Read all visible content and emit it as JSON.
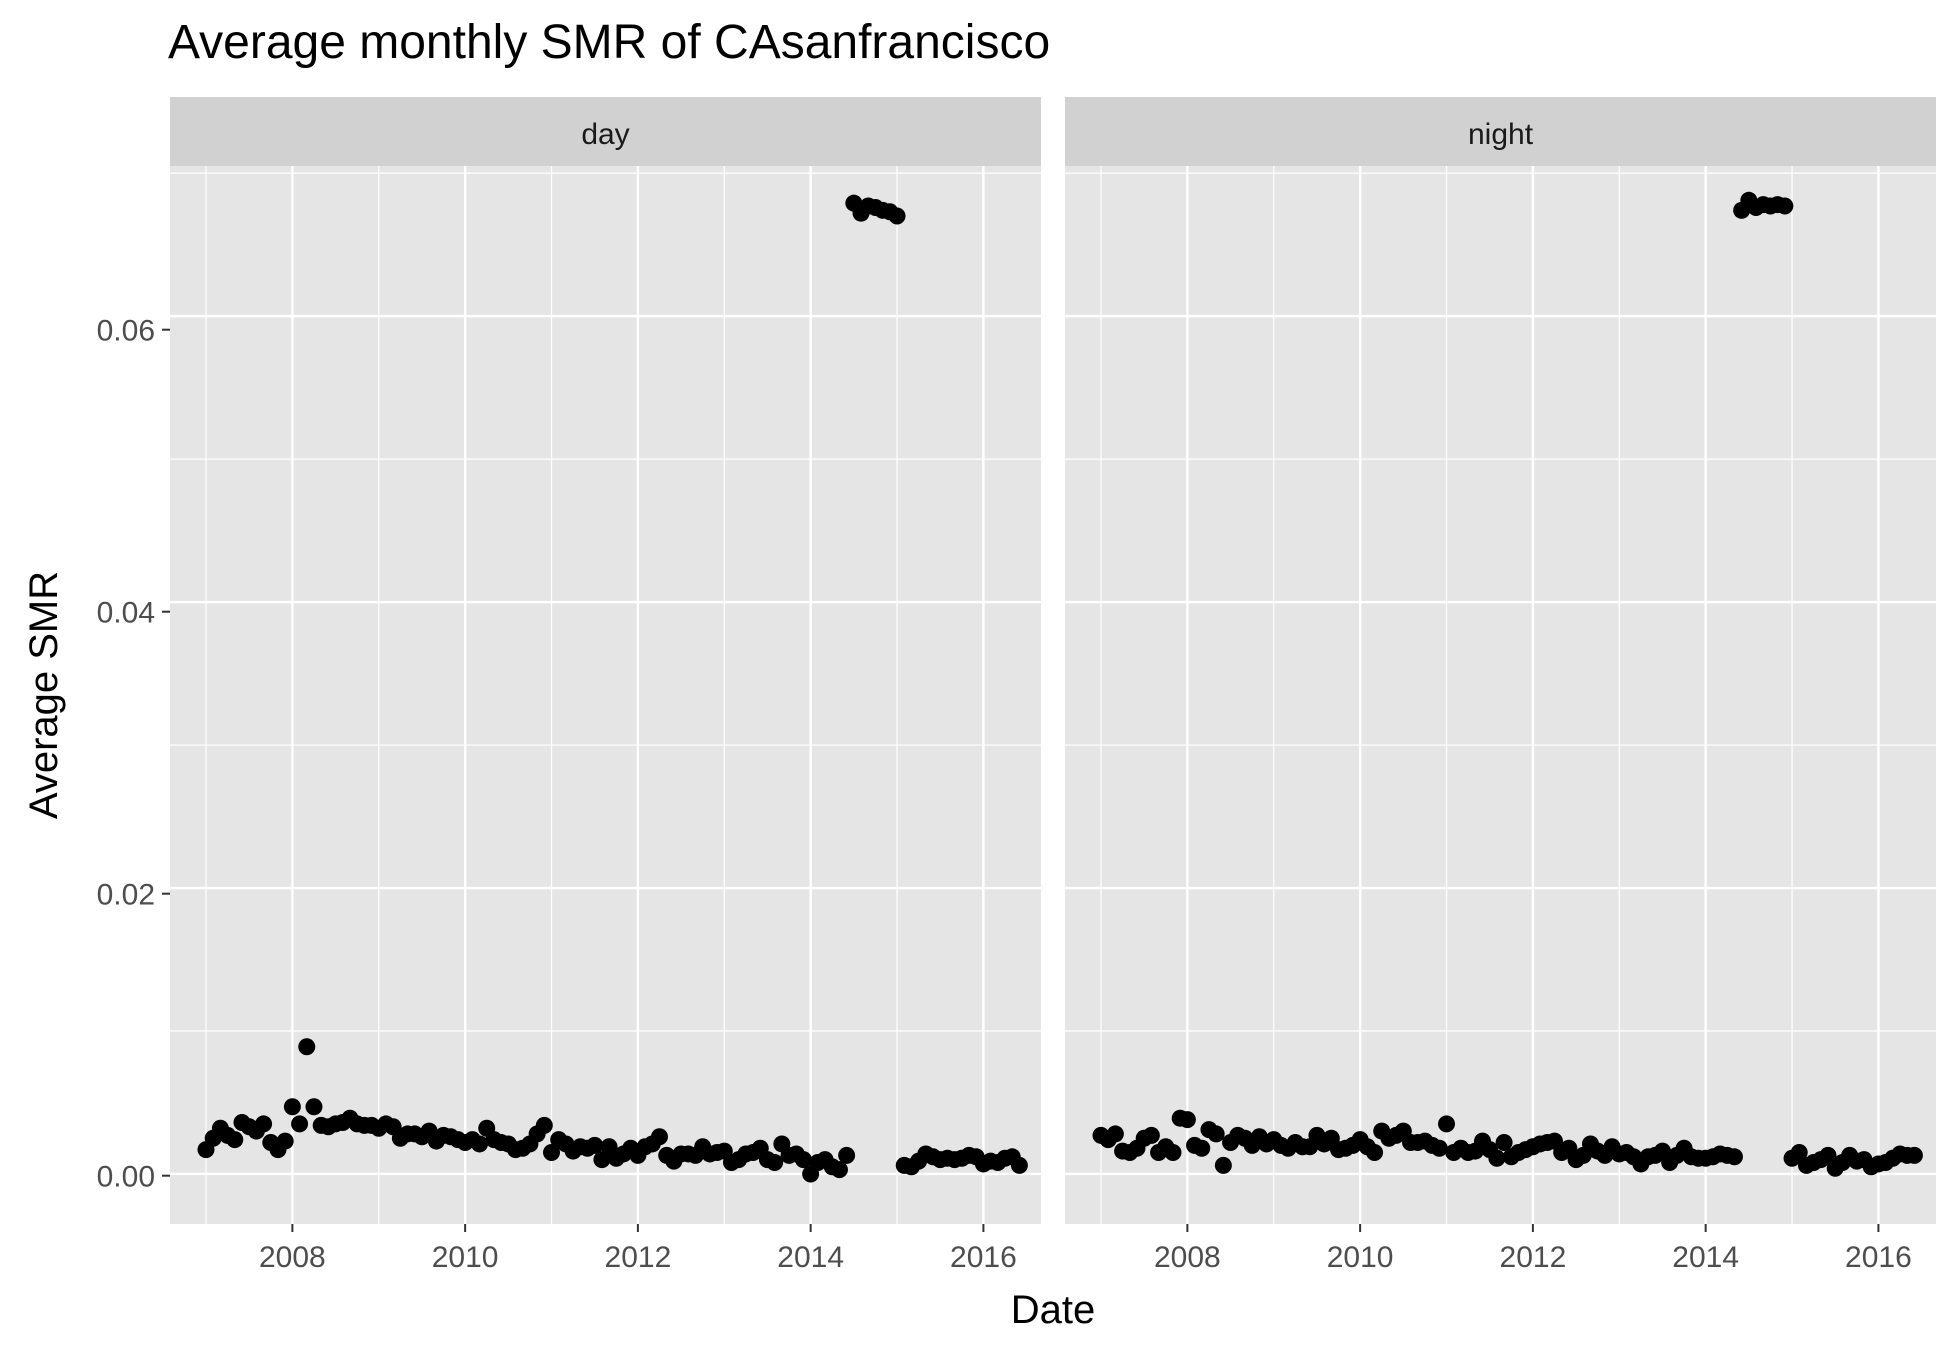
{
  "chart_data": {
    "type": "scatter",
    "title": "Average monthly SMR of CAsanfrancisco",
    "xlabel": "Date",
    "ylabel": "Average SMR",
    "xlim": [
      "2006-08-01",
      "2016-09-01"
    ],
    "ylim": [
      -0.0035,
      0.0705
    ],
    "x_ticks": [
      "2008",
      "2010",
      "2012",
      "2014",
      "2016"
    ],
    "y_ticks": [
      "0.00",
      "0.02",
      "0.04",
      "0.06"
    ],
    "grid": true,
    "legend": "none",
    "point_color": "#000000",
    "panel_background": "#e5e5e5",
    "strip_background": "#d1d1d1",
    "panels": [
      {
        "name": "day",
        "points": [
          [
            "2007-01",
            0.0017
          ],
          [
            "2007-02",
            0.0025
          ],
          [
            "2007-03",
            0.0032
          ],
          [
            "2007-04",
            0.0027
          ],
          [
            "2007-05",
            0.0024
          ],
          [
            "2007-06",
            0.0036
          ],
          [
            "2007-07",
            0.0033
          ],
          [
            "2007-08",
            0.003
          ],
          [
            "2007-09",
            0.0035
          ],
          [
            "2007-10",
            0.0022
          ],
          [
            "2007-11",
            0.0017
          ],
          [
            "2007-12",
            0.0023
          ],
          [
            "2008-01",
            0.0047
          ],
          [
            "2008-02",
            0.0035
          ],
          [
            "2008-03",
            0.0089
          ],
          [
            "2008-04",
            0.0047
          ],
          [
            "2008-05",
            0.0034
          ],
          [
            "2008-06",
            0.0033
          ],
          [
            "2008-07",
            0.0035
          ],
          [
            "2008-08",
            0.0036
          ],
          [
            "2008-09",
            0.0039
          ],
          [
            "2008-10",
            0.0035
          ],
          [
            "2008-11",
            0.0034
          ],
          [
            "2008-12",
            0.0034
          ],
          [
            "2009-01",
            0.0032
          ],
          [
            "2009-02",
            0.0035
          ],
          [
            "2009-03",
            0.0033
          ],
          [
            "2009-04",
            0.0025
          ],
          [
            "2009-05",
            0.0028
          ],
          [
            "2009-06",
            0.0028
          ],
          [
            "2009-07",
            0.0026
          ],
          [
            "2009-08",
            0.003
          ],
          [
            "2009-09",
            0.0023
          ],
          [
            "2009-10",
            0.0027
          ],
          [
            "2009-11",
            0.0026
          ],
          [
            "2009-12",
            0.0024
          ],
          [
            "2010-01",
            0.0022
          ],
          [
            "2010-02",
            0.0024
          ],
          [
            "2010-03",
            0.0021
          ],
          [
            "2010-04",
            0.0032
          ],
          [
            "2010-05",
            0.0024
          ],
          [
            "2010-06",
            0.0022
          ],
          [
            "2010-07",
            0.0021
          ],
          [
            "2010-08",
            0.0017
          ],
          [
            "2010-09",
            0.0018
          ],
          [
            "2010-10",
            0.0021
          ],
          [
            "2010-11",
            0.0028
          ],
          [
            "2010-12",
            0.0034
          ],
          [
            "2011-01",
            0.0015
          ],
          [
            "2011-02",
            0.0024
          ],
          [
            "2011-03",
            0.0021
          ],
          [
            "2011-04",
            0.0016
          ],
          [
            "2011-05",
            0.0019
          ],
          [
            "2011-06",
            0.0018
          ],
          [
            "2011-07",
            0.002
          ],
          [
            "2011-08",
            0.001
          ],
          [
            "2011-09",
            0.0019
          ],
          [
            "2011-10",
            0.0011
          ],
          [
            "2011-11",
            0.0014
          ],
          [
            "2011-12",
            0.0018
          ],
          [
            "2012-01",
            0.0013
          ],
          [
            "2012-02",
            0.0019
          ],
          [
            "2012-03",
            0.0021
          ],
          [
            "2012-04",
            0.0026
          ],
          [
            "2012-05",
            0.0013
          ],
          [
            "2012-06",
            0.0009
          ],
          [
            "2012-07",
            0.0014
          ],
          [
            "2012-08",
            0.0014
          ],
          [
            "2012-09",
            0.0013
          ],
          [
            "2012-10",
            0.0019
          ],
          [
            "2012-11",
            0.0014
          ],
          [
            "2012-12",
            0.0015
          ],
          [
            "2013-01",
            0.0016
          ],
          [
            "2013-02",
            0.0008
          ],
          [
            "2013-03",
            0.001
          ],
          [
            "2013-04",
            0.0014
          ],
          [
            "2013-05",
            0.0015
          ],
          [
            "2013-06",
            0.0018
          ],
          [
            "2013-07",
            0.001
          ],
          [
            "2013-08",
            0.0008
          ],
          [
            "2013-09",
            0.0021
          ],
          [
            "2013-10",
            0.0013
          ],
          [
            "2013-11",
            0.0014
          ],
          [
            "2013-12",
            0.001
          ],
          [
            "2014-01",
            0.0
          ],
          [
            "2014-02",
            0.0008
          ],
          [
            "2014-03",
            0.001
          ],
          [
            "2014-04",
            0.0005
          ],
          [
            "2014-05",
            0.0003
          ],
          [
            "2014-06",
            0.0013
          ],
          [
            "2014-07",
            0.0679
          ],
          [
            "2014-08",
            0.0672
          ],
          [
            "2014-09",
            0.0677
          ],
          [
            "2014-10",
            0.0676
          ],
          [
            "2014-11",
            0.0674
          ],
          [
            "2014-12",
            0.0673
          ],
          [
            "2015-01",
            0.067
          ],
          [
            "2015-02",
            0.0006
          ],
          [
            "2015-03",
            0.0005
          ],
          [
            "2015-04",
            0.0009
          ],
          [
            "2015-05",
            0.0014
          ],
          [
            "2015-06",
            0.0012
          ],
          [
            "2015-07",
            0.001
          ],
          [
            "2015-08",
            0.0011
          ],
          [
            "2015-09",
            0.001
          ],
          [
            "2015-10",
            0.0011
          ],
          [
            "2015-11",
            0.0013
          ],
          [
            "2015-12",
            0.0012
          ],
          [
            "2016-01",
            0.0007
          ],
          [
            "2016-02",
            0.0009
          ],
          [
            "2016-03",
            0.0008
          ],
          [
            "2016-04",
            0.0011
          ],
          [
            "2016-05",
            0.0012
          ],
          [
            "2016-06",
            0.0006
          ]
        ]
      },
      {
        "name": "night",
        "points": [
          [
            "2007-01",
            0.0027
          ],
          [
            "2007-02",
            0.0024
          ],
          [
            "2007-03",
            0.0028
          ],
          [
            "2007-04",
            0.0016
          ],
          [
            "2007-05",
            0.0015
          ],
          [
            "2007-06",
            0.0018
          ],
          [
            "2007-07",
            0.0025
          ],
          [
            "2007-08",
            0.0027
          ],
          [
            "2007-09",
            0.0015
          ],
          [
            "2007-10",
            0.0019
          ],
          [
            "2007-11",
            0.0015
          ],
          [
            "2007-12",
            0.0039
          ],
          [
            "2008-01",
            0.0038
          ],
          [
            "2008-02",
            0.002
          ],
          [
            "2008-03",
            0.0018
          ],
          [
            "2008-04",
            0.0031
          ],
          [
            "2008-05",
            0.0028
          ],
          [
            "2008-06",
            0.0006
          ],
          [
            "2008-07",
            0.0022
          ],
          [
            "2008-08",
            0.0027
          ],
          [
            "2008-09",
            0.0025
          ],
          [
            "2008-10",
            0.002
          ],
          [
            "2008-11",
            0.0026
          ],
          [
            "2008-12",
            0.0021
          ],
          [
            "2009-01",
            0.0024
          ],
          [
            "2009-02",
            0.002
          ],
          [
            "2009-03",
            0.0018
          ],
          [
            "2009-04",
            0.0022
          ],
          [
            "2009-05",
            0.0019
          ],
          [
            "2009-06",
            0.0019
          ],
          [
            "2009-07",
            0.0027
          ],
          [
            "2009-08",
            0.0021
          ],
          [
            "2009-09",
            0.0025
          ],
          [
            "2009-10",
            0.0017
          ],
          [
            "2009-11",
            0.0018
          ],
          [
            "2009-12",
            0.002
          ],
          [
            "2010-01",
            0.0024
          ],
          [
            "2010-02",
            0.0019
          ],
          [
            "2010-03",
            0.0015
          ],
          [
            "2010-04",
            0.003
          ],
          [
            "2010-05",
            0.0025
          ],
          [
            "2010-06",
            0.0027
          ],
          [
            "2010-07",
            0.003
          ],
          [
            "2010-08",
            0.0022
          ],
          [
            "2010-09",
            0.0022
          ],
          [
            "2010-10",
            0.0023
          ],
          [
            "2010-11",
            0.002
          ],
          [
            "2010-12",
            0.0018
          ],
          [
            "2011-01",
            0.0035
          ],
          [
            "2011-02",
            0.0015
          ],
          [
            "2011-03",
            0.0018
          ],
          [
            "2011-04",
            0.0015
          ],
          [
            "2011-05",
            0.0016
          ],
          [
            "2011-06",
            0.0023
          ],
          [
            "2011-07",
            0.0017
          ],
          [
            "2011-08",
            0.0011
          ],
          [
            "2011-09",
            0.0022
          ],
          [
            "2011-10",
            0.0012
          ],
          [
            "2011-11",
            0.0015
          ],
          [
            "2011-12",
            0.0017
          ],
          [
            "2012-01",
            0.0019
          ],
          [
            "2012-02",
            0.0021
          ],
          [
            "2012-03",
            0.0022
          ],
          [
            "2012-04",
            0.0023
          ],
          [
            "2012-05",
            0.0015
          ],
          [
            "2012-06",
            0.0018
          ],
          [
            "2012-07",
            0.001
          ],
          [
            "2012-08",
            0.0013
          ],
          [
            "2012-09",
            0.0021
          ],
          [
            "2012-10",
            0.0016
          ],
          [
            "2012-11",
            0.0013
          ],
          [
            "2012-12",
            0.0019
          ],
          [
            "2013-01",
            0.0014
          ],
          [
            "2013-02",
            0.0015
          ],
          [
            "2013-03",
            0.0012
          ],
          [
            "2013-04",
            0.0007
          ],
          [
            "2013-05",
            0.0012
          ],
          [
            "2013-06",
            0.0013
          ],
          [
            "2013-07",
            0.0016
          ],
          [
            "2013-08",
            0.0008
          ],
          [
            "2013-09",
            0.0013
          ],
          [
            "2013-10",
            0.0018
          ],
          [
            "2013-11",
            0.0012
          ],
          [
            "2013-12",
            0.0011
          ],
          [
            "2014-01",
            0.0011
          ],
          [
            "2014-02",
            0.0012
          ],
          [
            "2014-03",
            0.0014
          ],
          [
            "2014-04",
            0.0013
          ],
          [
            "2014-05",
            0.0012
          ],
          [
            "2014-06",
            0.0674
          ],
          [
            "2014-07",
            0.0681
          ],
          [
            "2014-08",
            0.0676
          ],
          [
            "2014-09",
            0.0678
          ],
          [
            "2014-10",
            0.0677
          ],
          [
            "2014-11",
            0.0678
          ],
          [
            "2014-12",
            0.0677
          ],
          [
            "2015-01",
            0.0011
          ],
          [
            "2015-02",
            0.0015
          ],
          [
            "2015-03",
            0.0006
          ],
          [
            "2015-04",
            0.0008
          ],
          [
            "2015-05",
            0.001
          ],
          [
            "2015-06",
            0.0013
          ],
          [
            "2015-07",
            0.0004
          ],
          [
            "2015-08",
            0.0008
          ],
          [
            "2015-09",
            0.0013
          ],
          [
            "2015-10",
            0.0009
          ],
          [
            "2015-11",
            0.001
          ],
          [
            "2015-12",
            0.0005
          ],
          [
            "2016-01",
            0.0007
          ],
          [
            "2016-02",
            0.0008
          ],
          [
            "2016-03",
            0.0011
          ],
          [
            "2016-04",
            0.0014
          ],
          [
            "2016-05",
            0.0013
          ],
          [
            "2016-06",
            0.0013
          ]
        ]
      }
    ]
  }
}
